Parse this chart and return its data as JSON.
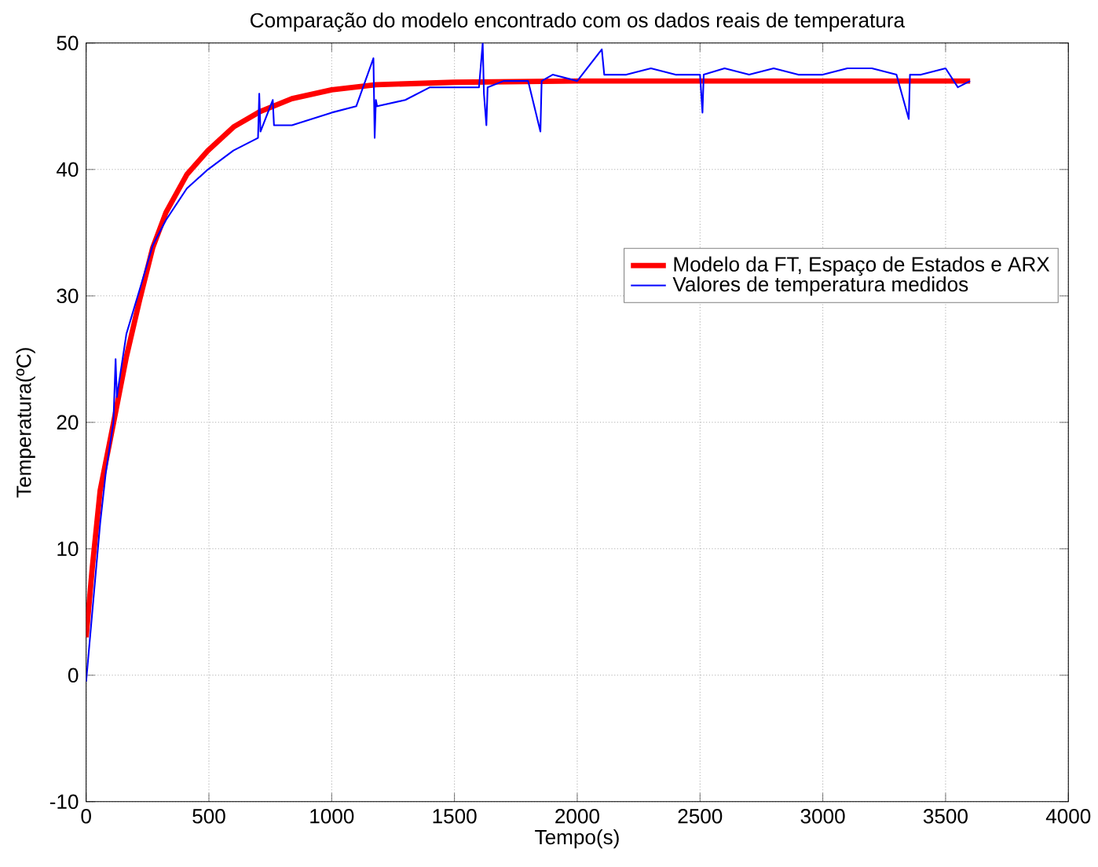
{
  "chart_data": {
    "type": "line",
    "title": "Comparação do modelo encontrado com os dados reais de temperatura",
    "xlabel": "Tempo(s)",
    "ylabel": "Temperatura(ºC)",
    "xlim": [
      0,
      4000
    ],
    "xticks": [
      0,
      500,
      1000,
      1500,
      2000,
      2500,
      3000,
      3500,
      4000
    ],
    "ylim": [
      -10,
      50
    ],
    "yticks": [
      -10,
      0,
      10,
      20,
      30,
      40,
      50
    ],
    "grid": true,
    "legend": "right",
    "series": [
      {
        "name": "Modelo da FT, Espaço de Estados e ARX",
        "color": "#ff0000",
        "x": [
          0,
          25,
          57,
          111,
          164,
          218,
          271,
          325,
          410,
          496,
          603,
          710,
          838,
          1000,
          1180,
          1500,
          2000,
          2500,
          3000,
          3600
        ],
        "values": [
          3,
          8.5,
          14.6,
          19.9,
          25.2,
          29.7,
          33.8,
          36.6,
          39.6,
          41.5,
          43.4,
          44.6,
          45.6,
          46.3,
          46.7,
          46.9,
          47,
          47,
          47,
          47
        ]
      },
      {
        "name": "Valores de temperatura medidos",
        "color": "#0000ff",
        "x": [
          0,
          25,
          57,
          80,
          111,
          120,
          125,
          164,
          218,
          271,
          325,
          410,
          496,
          600,
          700,
          705,
          710,
          760,
          765,
          838,
          1000,
          1100,
          1170,
          1175,
          1180,
          1185,
          1300,
          1400,
          1500,
          1600,
          1615,
          1620,
          1630,
          1635,
          1700,
          1800,
          1850,
          1855,
          1900,
          2000,
          2100,
          2110,
          2200,
          2300,
          2400,
          2500,
          2510,
          2515,
          2600,
          2700,
          2800,
          2900,
          3000,
          3100,
          3200,
          3300,
          3350,
          3355,
          3400,
          3500,
          3550,
          3600
        ],
        "values": [
          -0.5,
          5,
          12,
          16,
          20,
          25,
          22,
          27,
          30.5,
          34,
          36,
          38.5,
          40,
          41.5,
          42.5,
          46,
          43,
          45.5,
          43.5,
          43.5,
          44.5,
          45,
          48.8,
          42.5,
          45.5,
          45,
          45.5,
          46.5,
          46.5,
          46.5,
          50,
          46,
          43.5,
          46.5,
          47,
          47,
          43,
          47,
          47.5,
          47,
          49.5,
          47.5,
          47.5,
          48,
          47.5,
          47.5,
          44.5,
          47.5,
          48,
          47.5,
          48,
          47.5,
          47.5,
          48,
          48,
          47.5,
          44,
          47.5,
          47.5,
          48,
          46.5,
          47
        ]
      }
    ]
  }
}
